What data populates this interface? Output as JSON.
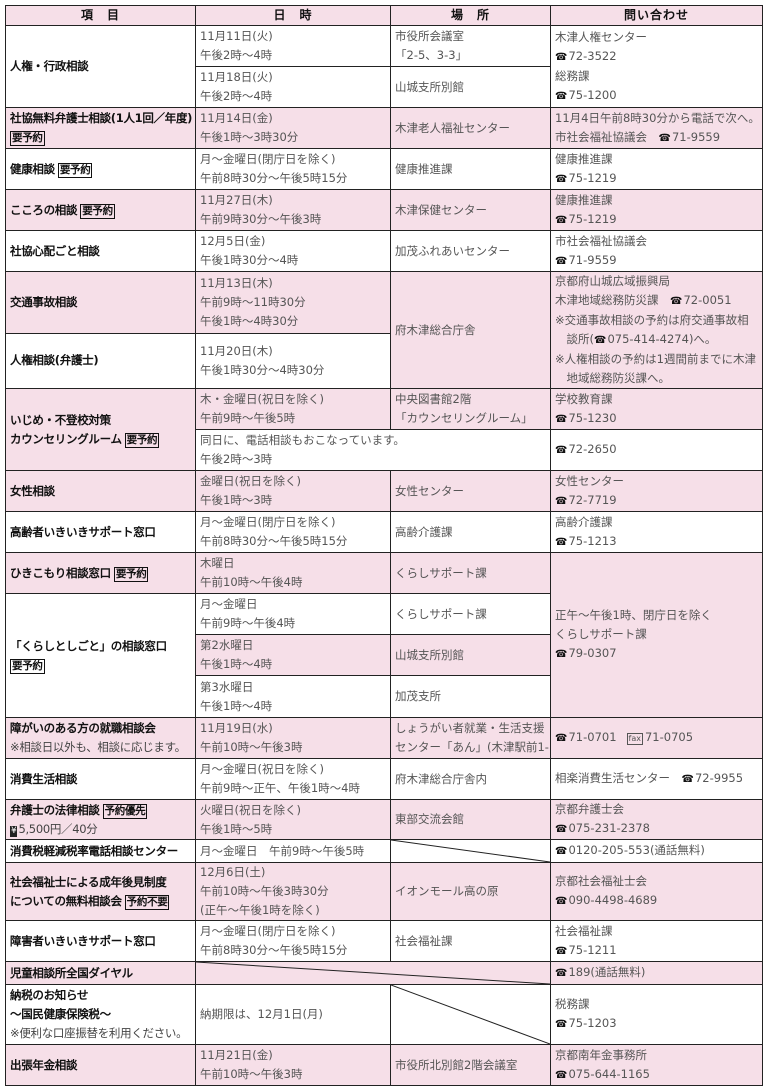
{
  "colors": {
    "pink": "#f6dfe8",
    "border": "#222222"
  },
  "header": [
    "項　目",
    "日　時",
    "場　所",
    "問い合わせ"
  ],
  "rows": [
    {
      "h": 40,
      "cells": [
        {
          "c": 1,
          "rs": 2,
          "lines": [
            "人権・行政相談"
          ]
        },
        {
          "lines": [
            "11月11日(火)",
            "午後2時～4時"
          ]
        },
        {
          "lines": [
            "市役所会議室",
            "「2-5、3-3」"
          ]
        },
        {
          "rs": 2,
          "lines": [
            "木津人権センター",
            {
              "tel": "72-3522"
            },
            "総務課",
            {
              "tel": "75-1200"
            }
          ]
        }
      ]
    },
    {
      "h": 40,
      "cells": [
        {
          "lines": [
            "11月18日(火)",
            "午後2時～4時"
          ]
        },
        {
          "lines": [
            "山城支所別館"
          ]
        }
      ]
    },
    {
      "h": 40,
      "cells": [
        {
          "c": 1,
          "pink": true,
          "lines": [
            "社協無料弁護士相談(1人1回／年度)",
            {
              "badge": "要予約"
            }
          ]
        },
        {
          "pink": true,
          "lines": [
            "11月14日(金)",
            "午後1時～3時30分"
          ]
        },
        {
          "pink": true,
          "lines": [
            "木津老人福祉センター"
          ]
        },
        {
          "pink": true,
          "lines": [
            "11月4日午前8時30分から電話で次へ。",
            {
              "t": "市社会福祉協議会　",
              "tel": "71-9559"
            }
          ]
        }
      ]
    },
    {
      "h": 40,
      "cells": [
        {
          "c": 1,
          "lines": [
            {
              "t": "健康相談",
              "badge": "要予約"
            }
          ]
        },
        {
          "lines": [
            "月～金曜日(閉庁日を除く)",
            "午前8時30分～午後5時15分"
          ]
        },
        {
          "lines": [
            "健康推進課"
          ]
        },
        {
          "lines": [
            "健康推進課",
            {
              "tel": "75-1219"
            }
          ]
        }
      ]
    },
    {
      "h": 40,
      "cells": [
        {
          "c": 1,
          "pink": true,
          "lines": [
            {
              "t": "こころの相談",
              "badge": "要予約"
            }
          ]
        },
        {
          "pink": true,
          "lines": [
            "11月27日(木)",
            "午前9時30分～午後3時"
          ]
        },
        {
          "pink": true,
          "lines": [
            "木津保健センター"
          ]
        },
        {
          "pink": true,
          "lines": [
            "健康推進課",
            {
              "tel": "75-1219"
            }
          ]
        }
      ]
    },
    {
      "h": 40,
      "cells": [
        {
          "c": 1,
          "lines": [
            "社協心配ごと相談"
          ]
        },
        {
          "lines": [
            "12月5日(金)",
            "午後1時30分～4時"
          ]
        },
        {
          "lines": [
            "加茂ふれあいセンター"
          ]
        },
        {
          "lines": [
            "市社会福祉協議会",
            {
              "tel": "71-9559"
            }
          ]
        }
      ]
    },
    {
      "h": 57,
      "cells": [
        {
          "c": 1,
          "pink": true,
          "lines": [
            "交通事故相談"
          ]
        },
        {
          "pink": true,
          "lines": [
            "11月13日(木)",
            "午前9時～11時30分",
            "午後1時～4時30分"
          ]
        },
        {
          "pink": true,
          "rs": 2,
          "lines": [
            "府木津総合庁舎"
          ]
        },
        {
          "pink": true,
          "rs": 2,
          "lines": [
            "京都府山城広域振興局",
            {
              "t": "木津地域総務防災課　",
              "tel": "72-0051"
            },
            {
              "t": "※交通事故相談の予約は府交通事故相",
              "indent": true
            },
            {
              "t": "　談所(",
              "tel": "075-414-4274",
              "after": ")へ。"
            },
            {
              "t": "※人権相談の予約は1週間前までに木津"
            },
            {
              "t": "　地域総務防災課へ。"
            }
          ]
        }
      ]
    },
    {
      "h": 51,
      "cells": [
        {
          "c": 1,
          "lines": [
            "人権相談(弁護士)"
          ]
        },
        {
          "lines": [
            "11月20日(木)",
            "午後1時30分～4時30分"
          ]
        }
      ]
    },
    {
      "h": 40,
      "cells": [
        {
          "c": 1,
          "pink": true,
          "rs": 2,
          "lines": [
            "いじめ・不登校対策",
            {
              "t": "カウンセリングルーム",
              "badge": "要予約"
            }
          ]
        },
        {
          "pink": true,
          "lines": [
            "木・金曜日(祝日を除く)",
            "午前9時～午後5時"
          ]
        },
        {
          "pink": true,
          "lines": [
            "中央図書館2階",
            "「カウンセリングルーム」"
          ]
        },
        {
          "pink": true,
          "lines": [
            "学校教育課",
            {
              "tel": "75-1230"
            }
          ]
        }
      ]
    },
    {
      "h": 40,
      "cells": [
        {
          "cs": 2,
          "lines": [
            "同日に、電話相談もおこなっています。",
            "午後2時～3時"
          ]
        },
        {
          "lines": [
            {
              "tel": "72-2650"
            }
          ]
        }
      ]
    },
    {
      "h": 40,
      "cells": [
        {
          "c": 1,
          "pink": true,
          "lines": [
            "女性相談"
          ]
        },
        {
          "pink": true,
          "lines": [
            "金曜日(祝日を除く)",
            "午後1時～3時"
          ]
        },
        {
          "pink": true,
          "lines": [
            "女性センター"
          ]
        },
        {
          "pink": true,
          "lines": [
            "女性センター",
            {
              "tel": "72-7719"
            }
          ]
        }
      ]
    },
    {
      "h": 40,
      "cells": [
        {
          "c": 1,
          "lines": [
            "高齢者いきいきサポート窓口"
          ]
        },
        {
          "lines": [
            "月～金曜日(閉庁日を除く)",
            "午前8時30分～午後5時15分"
          ]
        },
        {
          "lines": [
            "高齢介護課"
          ]
        },
        {
          "lines": [
            "高齢介護課",
            {
              "tel": "75-1213"
            }
          ]
        }
      ]
    },
    {
      "h": 40,
      "cells": [
        {
          "c": 1,
          "pink": true,
          "lines": [
            {
              "t": "ひきこもり相談窓口",
              "badge": "要予約"
            }
          ]
        },
        {
          "pink": true,
          "lines": [
            "木曜日",
            "午前10時～午後4時"
          ]
        },
        {
          "pink": true,
          "lines": [
            "くらしサポート課"
          ]
        },
        {
          "pink": true,
          "rs": 4,
          "lines": [
            "正午～午後1時、閉庁日を除く",
            "くらしサポート課",
            {
              "tel": "79-0307"
            }
          ]
        }
      ]
    },
    {
      "h": 40,
      "cells": [
        {
          "c": 1,
          "rs": 3,
          "lines": [
            "「くらしとしごと」の相談窓口",
            {
              "badge": "要予約"
            }
          ]
        },
        {
          "lines": [
            "月～金曜日",
            "午前9時～午後4時"
          ]
        },
        {
          "lines": [
            "くらしサポート課"
          ]
        }
      ]
    },
    {
      "h": 40,
      "cells": [
        {
          "pink": true,
          "lines": [
            "第2水曜日",
            "午後1時～4時"
          ]
        },
        {
          "pink": true,
          "lines": [
            "山城支所別館"
          ]
        }
      ]
    },
    {
      "h": 41,
      "cells": [
        {
          "lines": [
            "第3水曜日",
            "午後1時～4時"
          ]
        },
        {
          "lines": [
            "加茂支所"
          ]
        }
      ]
    },
    {
      "h": 40,
      "cells": [
        {
          "c": 1,
          "pink": true,
          "lines": [
            "障がいのある方の就職相談会",
            {
              "t": "※相談日以外も、相談に応じます。",
              "note": true
            }
          ]
        },
        {
          "pink": true,
          "lines": [
            "11月19日(水)",
            "午前10時～午後3時"
          ]
        },
        {
          "pink": true,
          "lines": [
            "しょうがい者就業・生活支援",
            "センター「あん」(木津駅前1-10)"
          ]
        },
        {
          "pink": true,
          "lines": [
            {
              "tel": "71-0701",
              "fax": "71-0705"
            }
          ]
        }
      ]
    },
    {
      "h": 40,
      "cells": [
        {
          "c": 1,
          "lines": [
            "消費生活相談"
          ]
        },
        {
          "lines": [
            "月～金曜日(祝日を除く)",
            "午前9時～正午、午後1時～4時"
          ]
        },
        {
          "lines": [
            "府木津総合庁舎内"
          ]
        },
        {
          "lines": [
            {
              "t": "相楽消費生活センター　",
              "tel": "72-9955"
            }
          ]
        }
      ]
    },
    {
      "h": 38,
      "cells": [
        {
          "c": 1,
          "pink": true,
          "lines": [
            {
              "t": "弁護士の法律相談",
              "badge": "予約優先"
            },
            {
              "yen": "5,500円／40分",
              "note": true
            }
          ]
        },
        {
          "pink": true,
          "lines": [
            "火曜日(祝日を除く)",
            "午後1時～5時"
          ]
        },
        {
          "pink": true,
          "lines": [
            "東部交流会館"
          ]
        },
        {
          "pink": true,
          "lines": [
            "京都弁護士会",
            {
              "tel": "075-231-2378"
            }
          ]
        }
      ]
    },
    {
      "h": 22,
      "cells": [
        {
          "c": 1,
          "lines": [
            "消費税軽減税率電話相談センター"
          ]
        },
        {
          "lines": [
            "月～金曜日　午前9時～午後5時"
          ]
        },
        {
          "diag": true,
          "lines": []
        },
        {
          "lines": [
            {
              "tel": "0120-205-553",
              "after": "(通話無料)"
            }
          ]
        }
      ]
    },
    {
      "h": 57,
      "cells": [
        {
          "c": 1,
          "pink": true,
          "lines": [
            "社会福祉士による成年後見制度",
            {
              "t": "についての無料相談会",
              "badge": "予約不要"
            }
          ]
        },
        {
          "pink": true,
          "lines": [
            "12月6日(土)",
            "午前10時～午後3時30分",
            "(正午～午後1時を除く)"
          ]
        },
        {
          "pink": true,
          "lines": [
            "イオンモール高の原"
          ]
        },
        {
          "pink": true,
          "lines": [
            "京都社会福祉士会",
            {
              "tel": "090-4498-4689"
            }
          ]
        }
      ]
    },
    {
      "h": 40,
      "cells": [
        {
          "c": 1,
          "lines": [
            "障害者いきいきサポート窓口"
          ]
        },
        {
          "lines": [
            "月～金曜日(閉庁日を除く)",
            "午前8時30分～午後5時15分"
          ]
        },
        {
          "lines": [
            "社会福祉課"
          ]
        },
        {
          "lines": [
            "社会福祉課",
            {
              "tel": "75-1211"
            }
          ]
        }
      ]
    },
    {
      "h": 22,
      "cells": [
        {
          "c": 1,
          "pink": true,
          "lines": [
            "児童相談所全国ダイヤル"
          ]
        },
        {
          "pink": true,
          "cs": 2,
          "diag": true,
          "lines": []
        },
        {
          "pink": true,
          "lines": [
            {
              "tel": "189",
              "after": "(通話無料)"
            }
          ]
        }
      ]
    },
    {
      "h": 59,
      "cells": [
        {
          "c": 1,
          "lines": [
            "納税のお知らせ",
            "～国民健康保険税～",
            {
              "t": "※便利な口座振替を利用ください。",
              "note": true
            }
          ]
        },
        {
          "lines": [
            "納期限は、12月1日(月)"
          ]
        },
        {
          "diag": true,
          "lines": []
        },
        {
          "lines": [
            "税務課",
            {
              "tel": "75-1203"
            }
          ]
        }
      ]
    },
    {
      "h": 40,
      "cells": [
        {
          "c": 1,
          "pink": true,
          "lines": [
            "出張年金相談"
          ]
        },
        {
          "pink": true,
          "lines": [
            "11月21日(金)",
            "午前10時～午後3時"
          ]
        },
        {
          "pink": true,
          "lines": [
            "市役所北別館2階会議室"
          ]
        },
        {
          "pink": true,
          "lines": [
            "京都南年金事務所",
            {
              "tel": "075-644-1165"
            }
          ]
        }
      ]
    }
  ]
}
